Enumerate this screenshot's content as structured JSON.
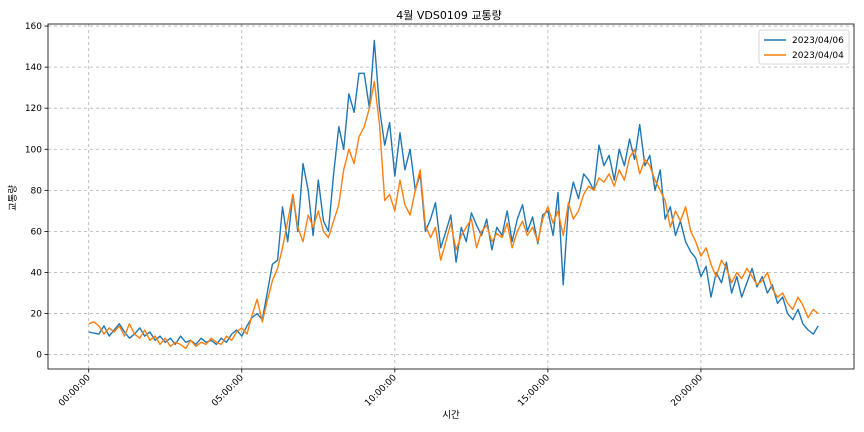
{
  "chart_data": {
    "type": "line",
    "title": "4월 VDS0109 교통량",
    "xlabel": "시간",
    "ylabel": "교통량",
    "xlim": [
      -1.33,
      25.0
    ],
    "ylim": [
      -7,
      161
    ],
    "x_ticks": [
      {
        "value": 0,
        "label": "00:00:00"
      },
      {
        "value": 5,
        "label": "05:00:00"
      },
      {
        "value": 10,
        "label": "10:00:00"
      },
      {
        "value": 15,
        "label": "15:00:00"
      },
      {
        "value": 20,
        "label": "20:00:00"
      }
    ],
    "y_ticks": [
      0,
      20,
      40,
      60,
      80,
      100,
      120,
      140,
      160
    ],
    "grid": true,
    "legend_position": "top-right",
    "series": [
      {
        "name": "2023/04/06",
        "color": "#1f77b4",
        "points": [
          [
            0.0,
            11
          ],
          [
            0.33,
            10
          ],
          [
            0.5,
            14
          ],
          [
            0.67,
            9
          ],
          [
            0.83,
            12
          ],
          [
            1.0,
            15
          ],
          [
            1.17,
            11
          ],
          [
            1.33,
            8
          ],
          [
            1.5,
            10
          ],
          [
            1.67,
            13
          ],
          [
            1.83,
            9
          ],
          [
            2.0,
            11
          ],
          [
            2.17,
            7
          ],
          [
            2.33,
            9
          ],
          [
            2.5,
            6
          ],
          [
            2.67,
            8
          ],
          [
            2.83,
            5
          ],
          [
            3.0,
            9
          ],
          [
            3.17,
            6
          ],
          [
            3.33,
            7
          ],
          [
            3.5,
            5
          ],
          [
            3.67,
            8
          ],
          [
            3.83,
            6
          ],
          [
            4.0,
            7
          ],
          [
            4.17,
            5
          ],
          [
            4.33,
            8
          ],
          [
            4.5,
            6
          ],
          [
            4.67,
            10
          ],
          [
            4.83,
            12
          ],
          [
            5.0,
            9
          ],
          [
            5.17,
            14
          ],
          [
            5.33,
            18
          ],
          [
            5.5,
            20
          ],
          [
            5.67,
            17
          ],
          [
            5.83,
            30
          ],
          [
            6.0,
            44
          ],
          [
            6.17,
            46
          ],
          [
            6.33,
            72
          ],
          [
            6.5,
            55
          ],
          [
            6.67,
            78
          ],
          [
            6.83,
            60
          ],
          [
            7.0,
            93
          ],
          [
            7.17,
            80
          ],
          [
            7.33,
            58
          ],
          [
            7.5,
            85
          ],
          [
            7.67,
            65
          ],
          [
            7.83,
            60
          ],
          [
            8.0,
            88
          ],
          [
            8.17,
            111
          ],
          [
            8.33,
            100
          ],
          [
            8.5,
            127
          ],
          [
            8.67,
            118
          ],
          [
            8.83,
            137
          ],
          [
            9.0,
            137
          ],
          [
            9.17,
            120
          ],
          [
            9.33,
            153
          ],
          [
            9.5,
            120
          ],
          [
            9.67,
            102
          ],
          [
            9.83,
            113
          ],
          [
            10.0,
            87
          ],
          [
            10.17,
            108
          ],
          [
            10.33,
            90
          ],
          [
            10.5,
            100
          ],
          [
            10.67,
            80
          ],
          [
            10.83,
            88
          ],
          [
            11.0,
            60
          ],
          [
            11.17,
            66
          ],
          [
            11.33,
            74
          ],
          [
            11.5,
            52
          ],
          [
            11.67,
            60
          ],
          [
            11.83,
            68
          ],
          [
            12.0,
            45
          ],
          [
            12.17,
            62
          ],
          [
            12.33,
            55
          ],
          [
            12.5,
            69
          ],
          [
            12.67,
            63
          ],
          [
            12.83,
            58
          ],
          [
            13.0,
            66
          ],
          [
            13.17,
            51
          ],
          [
            13.33,
            62
          ],
          [
            13.5,
            58
          ],
          [
            13.67,
            70
          ],
          [
            13.83,
            55
          ],
          [
            14.0,
            66
          ],
          [
            14.17,
            73
          ],
          [
            14.33,
            60
          ],
          [
            14.5,
            67
          ],
          [
            14.67,
            54
          ],
          [
            14.83,
            68
          ],
          [
            15.0,
            70
          ],
          [
            15.17,
            58
          ],
          [
            15.33,
            79
          ],
          [
            15.5,
            34
          ],
          [
            15.67,
            72
          ],
          [
            15.83,
            84
          ],
          [
            16.0,
            76
          ],
          [
            16.17,
            88
          ],
          [
            16.33,
            85
          ],
          [
            16.5,
            80
          ],
          [
            16.67,
            102
          ],
          [
            16.83,
            92
          ],
          [
            17.0,
            97
          ],
          [
            17.17,
            85
          ],
          [
            17.33,
            100
          ],
          [
            17.5,
            92
          ],
          [
            17.67,
            105
          ],
          [
            17.83,
            95
          ],
          [
            18.0,
            112
          ],
          [
            18.17,
            92
          ],
          [
            18.33,
            97
          ],
          [
            18.5,
            80
          ],
          [
            18.67,
            90
          ],
          [
            18.83,
            66
          ],
          [
            19.0,
            72
          ],
          [
            19.17,
            58
          ],
          [
            19.33,
            65
          ],
          [
            19.5,
            55
          ],
          [
            19.67,
            50
          ],
          [
            19.83,
            47
          ],
          [
            20.0,
            38
          ],
          [
            20.17,
            43
          ],
          [
            20.33,
            28
          ],
          [
            20.5,
            40
          ],
          [
            20.67,
            35
          ],
          [
            20.83,
            45
          ],
          [
            21.0,
            30
          ],
          [
            21.17,
            38
          ],
          [
            21.33,
            28
          ],
          [
            21.5,
            35
          ],
          [
            21.67,
            42
          ],
          [
            21.83,
            33
          ],
          [
            22.0,
            38
          ],
          [
            22.17,
            30
          ],
          [
            22.33,
            34
          ],
          [
            22.5,
            25
          ],
          [
            22.67,
            28
          ],
          [
            22.83,
            20
          ],
          [
            23.0,
            17
          ],
          [
            23.17,
            22
          ],
          [
            23.33,
            15
          ],
          [
            23.5,
            12
          ],
          [
            23.67,
            10
          ],
          [
            23.83,
            14
          ]
        ]
      },
      {
        "name": "2023/04/04",
        "color": "#ff7f0e",
        "points": [
          [
            0.0,
            15
          ],
          [
            0.17,
            16
          ],
          [
            0.33,
            14
          ],
          [
            0.5,
            10
          ],
          [
            0.67,
            13
          ],
          [
            0.83,
            11
          ],
          [
            1.0,
            14
          ],
          [
            1.17,
            9
          ],
          [
            1.33,
            15
          ],
          [
            1.5,
            10
          ],
          [
            1.67,
            8
          ],
          [
            1.83,
            12
          ],
          [
            2.0,
            7
          ],
          [
            2.17,
            9
          ],
          [
            2.33,
            5
          ],
          [
            2.5,
            8
          ],
          [
            2.67,
            4
          ],
          [
            2.83,
            6
          ],
          [
            3.0,
            5
          ],
          [
            3.17,
            3
          ],
          [
            3.33,
            7
          ],
          [
            3.5,
            4
          ],
          [
            3.67,
            6
          ],
          [
            3.83,
            5
          ],
          [
            4.0,
            8
          ],
          [
            4.17,
            6
          ],
          [
            4.33,
            5
          ],
          [
            4.5,
            9
          ],
          [
            4.67,
            7
          ],
          [
            4.83,
            11
          ],
          [
            5.0,
            13
          ],
          [
            5.17,
            10
          ],
          [
            5.33,
            19
          ],
          [
            5.5,
            27
          ],
          [
            5.67,
            16
          ],
          [
            5.83,
            26
          ],
          [
            6.0,
            36
          ],
          [
            6.17,
            42
          ],
          [
            6.33,
            52
          ],
          [
            6.5,
            65
          ],
          [
            6.67,
            78
          ],
          [
            6.83,
            62
          ],
          [
            7.0,
            55
          ],
          [
            7.17,
            68
          ],
          [
            7.33,
            62
          ],
          [
            7.5,
            70
          ],
          [
            7.67,
            60
          ],
          [
            7.83,
            57
          ],
          [
            8.0,
            65
          ],
          [
            8.17,
            73
          ],
          [
            8.33,
            90
          ],
          [
            8.5,
            100
          ],
          [
            8.67,
            93
          ],
          [
            8.83,
            106
          ],
          [
            9.0,
            111
          ],
          [
            9.17,
            120
          ],
          [
            9.33,
            133
          ],
          [
            9.5,
            112
          ],
          [
            9.67,
            75
          ],
          [
            9.83,
            78
          ],
          [
            10.0,
            70
          ],
          [
            10.17,
            85
          ],
          [
            10.33,
            73
          ],
          [
            10.5,
            68
          ],
          [
            10.67,
            80
          ],
          [
            10.83,
            90
          ],
          [
            11.0,
            63
          ],
          [
            11.17,
            57
          ],
          [
            11.33,
            62
          ],
          [
            11.5,
            46
          ],
          [
            11.67,
            55
          ],
          [
            11.83,
            64
          ],
          [
            12.0,
            51
          ],
          [
            12.17,
            58
          ],
          [
            12.33,
            62
          ],
          [
            12.5,
            66
          ],
          [
            12.67,
            52
          ],
          [
            12.83,
            60
          ],
          [
            13.0,
            63
          ],
          [
            13.17,
            55
          ],
          [
            13.33,
            59
          ],
          [
            13.5,
            57
          ],
          [
            13.67,
            64
          ],
          [
            13.83,
            52
          ],
          [
            14.0,
            60
          ],
          [
            14.17,
            65
          ],
          [
            14.33,
            58
          ],
          [
            14.5,
            62
          ],
          [
            14.67,
            55
          ],
          [
            14.83,
            66
          ],
          [
            15.0,
            72
          ],
          [
            15.17,
            64
          ],
          [
            15.33,
            70
          ],
          [
            15.5,
            58
          ],
          [
            15.67,
            74
          ],
          [
            15.83,
            66
          ],
          [
            16.0,
            70
          ],
          [
            16.17,
            78
          ],
          [
            16.33,
            82
          ],
          [
            16.5,
            80
          ],
          [
            16.67,
            86
          ],
          [
            16.83,
            84
          ],
          [
            17.0,
            88
          ],
          [
            17.17,
            82
          ],
          [
            17.33,
            90
          ],
          [
            17.5,
            85
          ],
          [
            17.67,
            96
          ],
          [
            17.83,
            100
          ],
          [
            18.0,
            88
          ],
          [
            18.17,
            95
          ],
          [
            18.33,
            92
          ],
          [
            18.5,
            85
          ],
          [
            18.67,
            80
          ],
          [
            18.83,
            75
          ],
          [
            19.0,
            62
          ],
          [
            19.17,
            70
          ],
          [
            19.33,
            65
          ],
          [
            19.5,
            72
          ],
          [
            19.67,
            60
          ],
          [
            19.83,
            55
          ],
          [
            20.0,
            48
          ],
          [
            20.17,
            52
          ],
          [
            20.33,
            44
          ],
          [
            20.5,
            38
          ],
          [
            20.67,
            46
          ],
          [
            20.83,
            42
          ],
          [
            21.0,
            35
          ],
          [
            21.17,
            40
          ],
          [
            21.33,
            37
          ],
          [
            21.5,
            42
          ],
          [
            21.67,
            38
          ],
          [
            21.83,
            34
          ],
          [
            22.0,
            36
          ],
          [
            22.17,
            40
          ],
          [
            22.33,
            32
          ],
          [
            22.5,
            28
          ],
          [
            22.67,
            30
          ],
          [
            22.83,
            25
          ],
          [
            23.0,
            22
          ],
          [
            23.17,
            28
          ],
          [
            23.33,
            24
          ],
          [
            23.5,
            18
          ],
          [
            23.67,
            22
          ],
          [
            23.83,
            20
          ]
        ]
      }
    ]
  }
}
